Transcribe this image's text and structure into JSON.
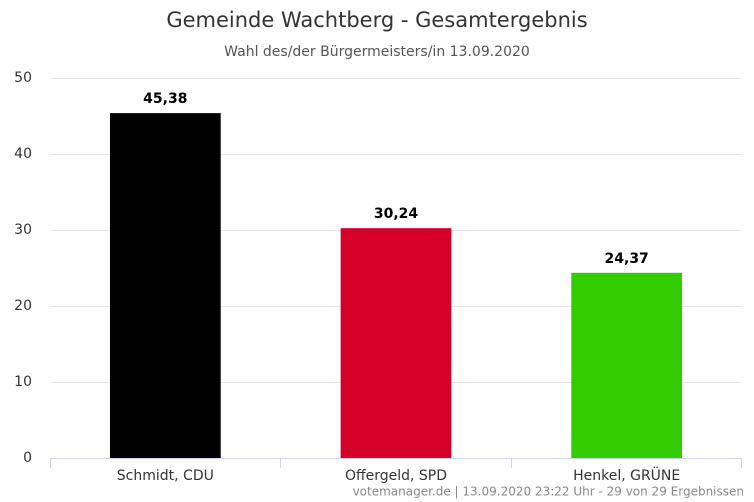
{
  "chart_data": {
    "type": "bar",
    "title": "Gemeinde Wachtberg - Gesamtergebnis",
    "subtitle": "Wahl des/der Bürgermeisters/in 13.09.2020",
    "categories": [
      "Schmidt, CDU",
      "Offergeld, SPD",
      "Henkel, GRÜNE"
    ],
    "values": [
      45.38,
      30.24,
      24.37
    ],
    "value_labels": [
      "45,38",
      "30,24",
      "24,37"
    ],
    "colors": [
      "#000000",
      "#d4002a",
      "#33cc00"
    ],
    "ylim": [
      0,
      50
    ],
    "yticks": [
      0,
      10,
      20,
      30,
      40,
      50
    ],
    "grid": true,
    "credit": "votemanager.de | 13.09.2020 23:22 Uhr - 29 von 29 Ergebnissen"
  }
}
